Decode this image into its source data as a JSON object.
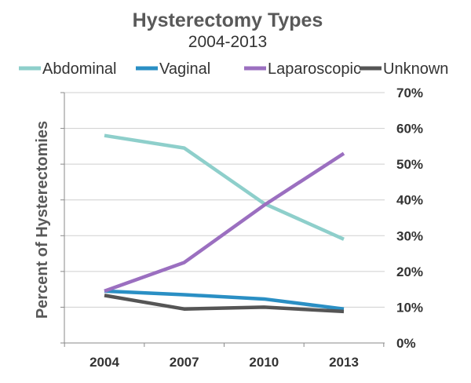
{
  "chart_data": {
    "type": "line",
    "title": "Hysterectomy Types",
    "subtitle": "2004-2013",
    "xlabel": "",
    "ylabel": "Percent of Hysterectomies",
    "categories": [
      "2004",
      "2007",
      "2010",
      "2013"
    ],
    "ylim": [
      0,
      70
    ],
    "yticks": [
      "0%",
      "10%",
      "20%",
      "30%",
      "40%",
      "50%",
      "60%",
      "70%"
    ],
    "ytick_values": [
      0,
      10,
      20,
      30,
      40,
      50,
      60,
      70
    ],
    "grid": true,
    "legend_position": "top",
    "series": [
      {
        "name": "Abdominal",
        "color": "#8ECFCB",
        "values": [
          58,
          54.5,
          39,
          29
        ]
      },
      {
        "name": "Vaginal",
        "color": "#2A8FC4",
        "values": [
          14.5,
          13.5,
          12.3,
          9.5
        ]
      },
      {
        "name": "Laparoscopic",
        "color": "#9B6FC0",
        "values": [
          14.5,
          22.5,
          38.5,
          53
        ]
      },
      {
        "name": "Unknown",
        "color": "#555555",
        "values": [
          13.3,
          9.5,
          10,
          8.8
        ]
      }
    ]
  }
}
